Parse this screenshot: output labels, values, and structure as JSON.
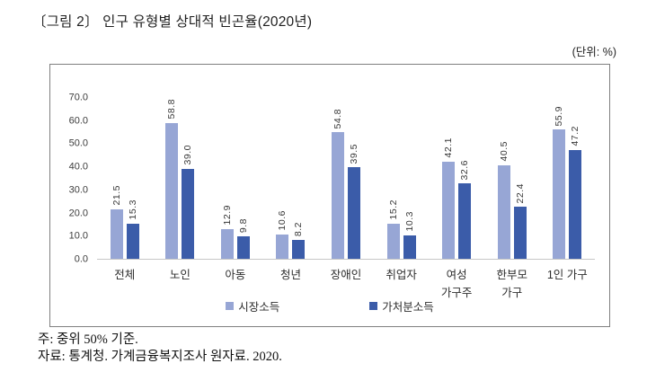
{
  "header": {
    "title": "〔그림 2〕 인구 유형별 상대적 빈곤율(2020년)",
    "unit": "(단위: %)"
  },
  "chart_data": {
    "type": "bar",
    "title": "인구 유형별 상대적 빈곤율(2020년)",
    "unit": "%",
    "categories": [
      "전체",
      "노인",
      "아동",
      "청년",
      "장애인",
      "취업자",
      "여성\n가구주",
      "한부모\n가구",
      "1인 가구"
    ],
    "series": [
      {
        "name": "시장소득",
        "color": "#97a6d5",
        "values": [
          21.5,
          58.8,
          12.9,
          10.6,
          54.8,
          15.2,
          42.1,
          40.5,
          55.9
        ]
      },
      {
        "name": "가처분소득",
        "color": "#3b5ca9",
        "values": [
          15.3,
          39.0,
          9.8,
          8.2,
          39.5,
          10.3,
          32.6,
          22.4,
          47.2
        ]
      }
    ],
    "ylim": [
      0,
      70
    ],
    "yticks": [
      0,
      10,
      20,
      30,
      40,
      50,
      60,
      70
    ],
    "grid": false,
    "legend_position": "bottom-inside",
    "value_label_style": "rotated-90"
  },
  "footer": {
    "note": "주: 중위 50% 기준.",
    "source": "자료: 통계청. 가계금융복지조사 원자료. 2020."
  },
  "colors": {
    "series1": "#97a6d5",
    "series2": "#3b5ca9",
    "box_border": "#7f7f7f",
    "baseline": "#c6c6c6",
    "text": "#2e2e2e"
  }
}
